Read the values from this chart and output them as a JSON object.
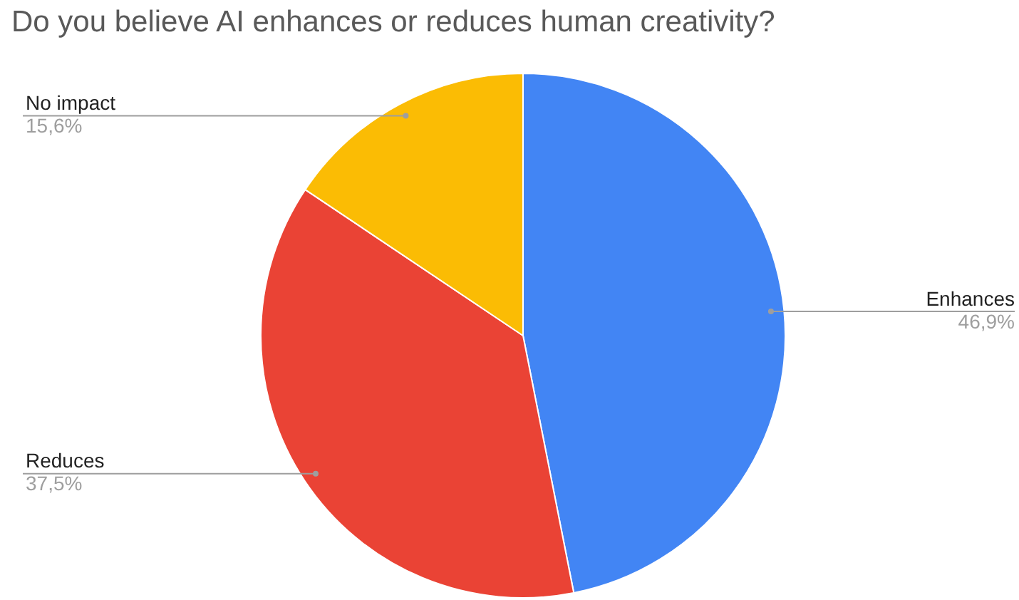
{
  "chart_data": {
    "type": "pie",
    "title": "Do you believe AI enhances or reduces human creativity?",
    "categories": [
      "Enhances",
      "Reduces",
      "No impact"
    ],
    "values": [
      46.9,
      37.5,
      15.6
    ],
    "value_labels": [
      "46,9%",
      "37,5%",
      "15,6%"
    ],
    "colors": [
      "#4285f4",
      "#ea4335",
      "#fbbc04"
    ],
    "legend": false
  }
}
